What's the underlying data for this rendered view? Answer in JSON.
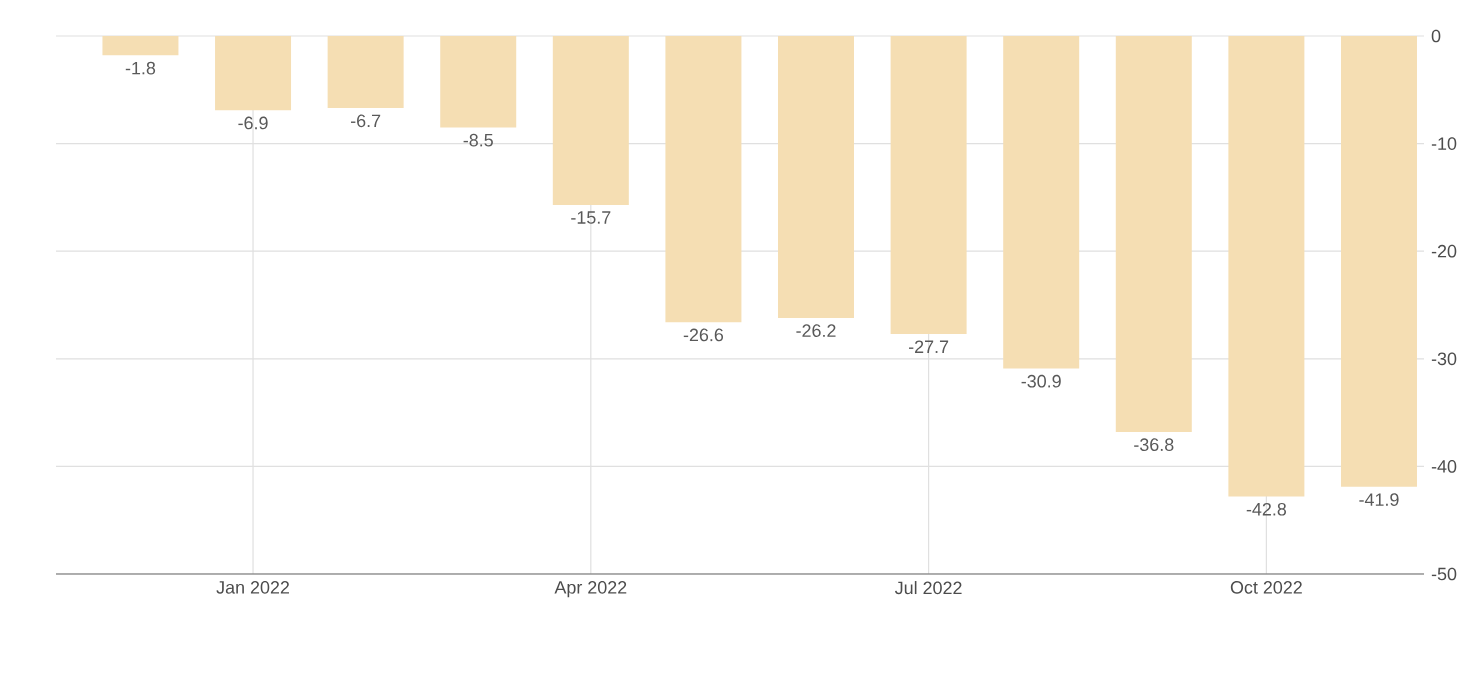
{
  "chart_data": {
    "type": "bar",
    "categories": [
      null,
      "Jan 2022",
      null,
      null,
      "Apr 2022",
      null,
      null,
      "Jul 2022",
      null,
      null,
      "Oct 2022",
      null
    ],
    "values": [
      -1.8,
      -6.9,
      -6.7,
      -8.5,
      -15.7,
      -26.6,
      -26.2,
      -27.7,
      -30.9,
      -36.8,
      -42.8,
      -41.9
    ],
    "color": "#f5deb3",
    "ylim": [
      -50,
      0
    ],
    "yticks": [
      -50,
      -40,
      -30,
      -20,
      -10,
      0
    ],
    "grid": true,
    "data_labels": true
  }
}
